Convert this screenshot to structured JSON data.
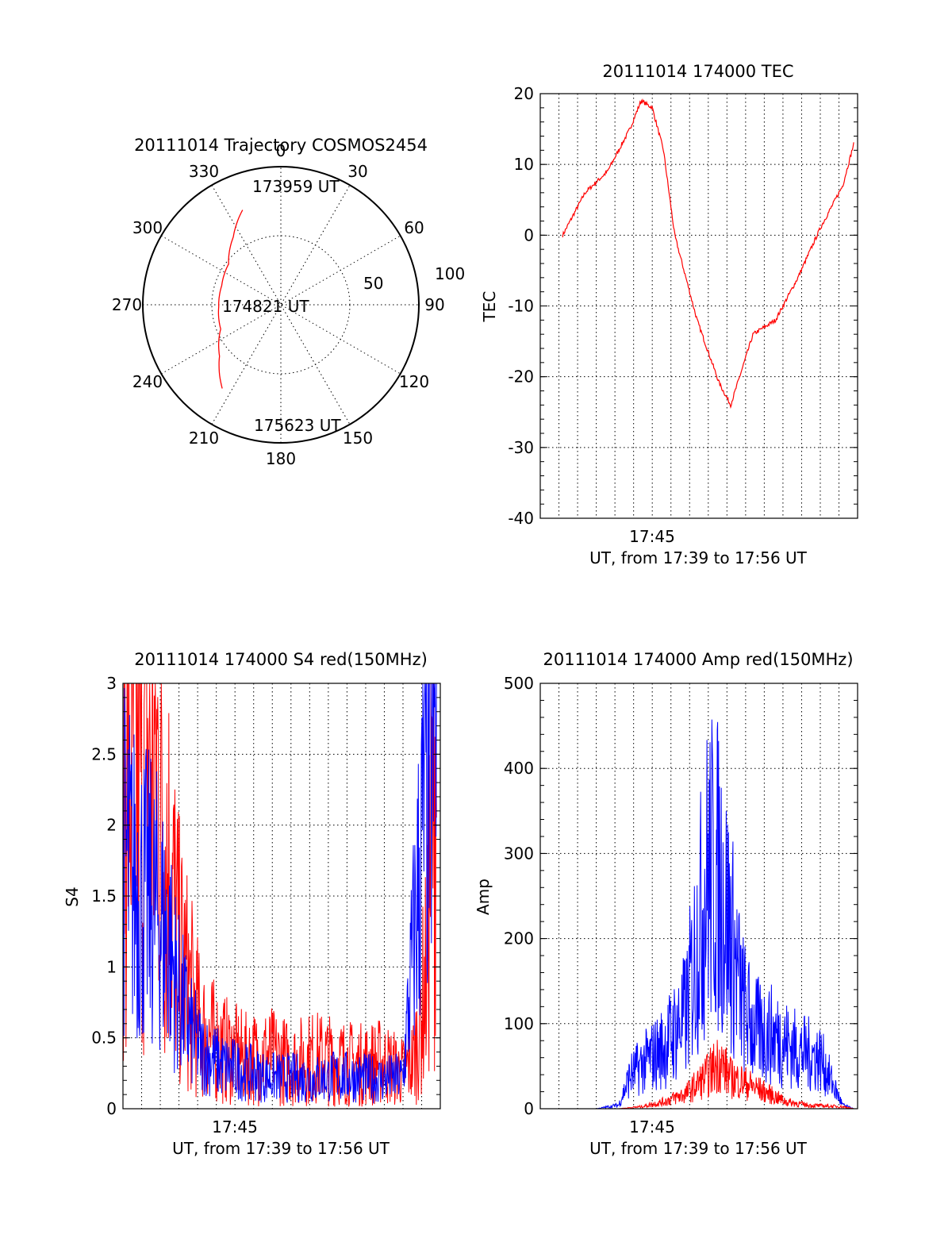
{
  "colors": {
    "red": "#ff0000",
    "blue": "#0000ff",
    "axis": "#000000"
  },
  "chart_data": [
    {
      "type": "polar",
      "title": "20111014 Trajectory COSMOS2454",
      "angle_labels": [
        "0",
        "30",
        "60",
        "90",
        "120",
        "150",
        "180",
        "210",
        "240",
        "270",
        "300",
        "330"
      ],
      "radial_labels": [
        "50",
        "100"
      ],
      "rlim": [
        0,
        100
      ],
      "grid": true,
      "series": [
        {
          "color": "#ff0000",
          "points": [
            {
              "azimuth": 338,
              "radius": 74
            },
            {
              "azimuth": 325,
              "radius": 60
            },
            {
              "azimuth": 308,
              "radius": 48
            },
            {
              "azimuth": 288,
              "radius": 45
            },
            {
              "azimuth": 268,
              "radius": 45
            },
            {
              "azimuth": 248,
              "radius": 47
            },
            {
              "azimuth": 230,
              "radius": 58
            },
            {
              "azimuth": 215,
              "radius": 74
            }
          ]
        }
      ],
      "annotations": [
        {
          "text": "173959 UT",
          "azimuth": 338,
          "radius": 74
        },
        {
          "text": "174821 UT",
          "azimuth": 0,
          "radius": 0
        },
        {
          "text": "175623 UT",
          "azimuth": 215,
          "radius": 74
        }
      ]
    },
    {
      "type": "line",
      "title": "20111014 174000 TEC",
      "ylabel": "TEC",
      "xlabel": "UT, from 17:39 to 17:56 UT",
      "x_tick_label": "17:45",
      "ylim": [
        -40,
        20
      ],
      "yticks": [
        "-40",
        "-30",
        "-20",
        "-10",
        "0",
        "10",
        "20"
      ],
      "grid": true,
      "series": [
        {
          "color": "#ff0000",
          "x": [
            17.67,
            17.69,
            17.71,
            17.73,
            17.74,
            17.75,
            17.76,
            17.77,
            17.79,
            17.81,
            17.82,
            17.83,
            17.84,
            17.86,
            17.88,
            17.9,
            17.92,
            17.93
          ],
          "y": [
            0,
            6,
            9,
            15,
            19,
            18,
            12,
            0,
            -12,
            -21,
            -24,
            -19,
            -14,
            -12,
            -6,
            1,
            7,
            13
          ]
        }
      ]
    },
    {
      "type": "line",
      "title": "20111014 174000 S4 red(150MHz)",
      "ylabel": "S4",
      "xlabel": "UT, from 17:39 to 17:56 UT",
      "x_tick_label": "17:45",
      "ylim": [
        0,
        3
      ],
      "yticks": [
        "0",
        "0.5",
        "1",
        "1.5",
        "2",
        "2.5",
        "3"
      ],
      "grid": true,
      "series": [
        {
          "color": "#ff0000",
          "x": [
            17.65,
            17.67,
            17.68,
            17.69,
            17.7,
            17.72,
            17.74,
            17.76,
            17.78,
            17.8,
            17.82,
            17.84,
            17.86,
            17.88,
            17.9,
            17.91,
            17.92,
            17.93
          ],
          "y": [
            2.6,
            2.5,
            2.4,
            1.8,
            1.1,
            0.55,
            0.42,
            0.35,
            0.38,
            0.32,
            0.36,
            0.34,
            0.31,
            0.33,
            0.26,
            0.35,
            0.9,
            2.8
          ]
        },
        {
          "color": "#0000ff",
          "x": [
            17.65,
            17.66,
            17.67,
            17.68,
            17.69,
            17.7,
            17.71,
            17.72,
            17.74,
            17.76,
            17.78,
            17.8,
            17.82,
            17.84,
            17.86,
            17.88,
            17.9,
            17.92,
            17.93
          ],
          "y": [
            1.8,
            1.6,
            1.5,
            1.4,
            1.2,
            0.8,
            0.55,
            0.4,
            0.3,
            0.26,
            0.22,
            0.22,
            0.21,
            0.23,
            0.22,
            0.21,
            0.22,
            2.2,
            2.8
          ]
        }
      ]
    },
    {
      "type": "line",
      "title": "20111014 174000 Amp red(150MHz)",
      "ylabel": "Amp",
      "xlabel": "UT, from 17:39 to 17:56 UT",
      "x_tick_label": "17:45",
      "ylim": [
        0,
        500
      ],
      "yticks": [
        "0",
        "100",
        "200",
        "300",
        "400",
        "500"
      ],
      "grid": true,
      "series": [
        {
          "color": "#0000ff",
          "x": [
            17.67,
            17.7,
            17.72,
            17.73,
            17.74,
            17.76,
            17.78,
            17.79,
            17.8,
            17.81,
            17.82,
            17.83,
            17.84,
            17.86,
            17.88,
            17.9,
            17.92,
            17.93
          ],
          "y": [
            0,
            0,
            5,
            45,
            60,
            85,
            130,
            230,
            330,
            320,
            240,
            150,
            110,
            100,
            80,
            70,
            5,
            0
          ]
        },
        {
          "color": "#ff0000",
          "x": [
            17.67,
            17.72,
            17.74,
            17.76,
            17.78,
            17.8,
            17.81,
            17.82,
            17.83,
            17.85,
            17.87,
            17.89,
            17.92,
            17.93
          ],
          "y": [
            0,
            0,
            3,
            10,
            22,
            50,
            70,
            45,
            40,
            25,
            10,
            5,
            3,
            0
          ]
        }
      ]
    }
  ]
}
